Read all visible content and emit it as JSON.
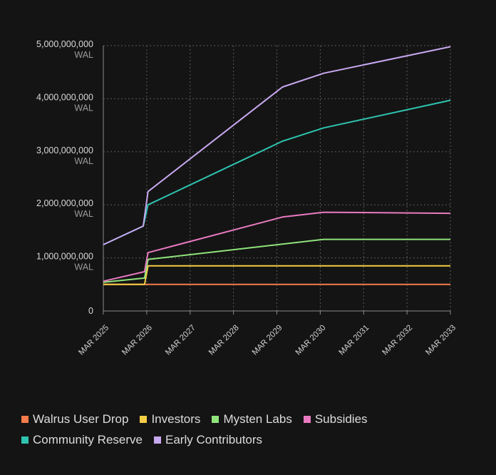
{
  "chart_data": {
    "type": "line",
    "x": [
      "MAR 2025",
      "MAR 2026",
      "MAR 2027",
      "MAR 2028",
      "MAR 2029",
      "MAR 2030",
      "MAR 2031",
      "MAR 2032",
      "MAR 2033"
    ],
    "xlim": [
      2025,
      2033
    ],
    "ylim": [
      0,
      5000000000
    ],
    "yticks": [
      {
        "value": 0,
        "label": "0",
        "unit": ""
      },
      {
        "value": 1000000000,
        "label": "1,000,000,000",
        "unit": "WAL"
      },
      {
        "value": 2000000000,
        "label": "2,000,000,000",
        "unit": "WAL"
      },
      {
        "value": 3000000000,
        "label": "3,000,000,000",
        "unit": "WAL"
      },
      {
        "value": 4000000000,
        "label": "4,000,000,000",
        "unit": "WAL"
      },
      {
        "value": 5000000000,
        "label": "5,000,000,000",
        "unit": "WAL"
      }
    ],
    "grid": true,
    "stacked": true,
    "legend_position": "bottom",
    "series": [
      {
        "name": "Walrus User Drop",
        "color": "#f47c4a",
        "points": [
          [
            2025.0,
            500000000
          ],
          [
            2033.0,
            500000000
          ]
        ]
      },
      {
        "name": "Investors",
        "color": "#f6cd45",
        "points": [
          [
            2025.0,
            500000000
          ],
          [
            2025.95,
            500000000
          ],
          [
            2026.03,
            850000000
          ],
          [
            2033.0,
            850000000
          ]
        ]
      },
      {
        "name": "Mysten Labs",
        "color": "#8fe37b",
        "points": [
          [
            2025.0,
            540000000
          ],
          [
            2025.95,
            620000000
          ],
          [
            2026.03,
            970000000
          ],
          [
            2030.08,
            1350000000
          ],
          [
            2033.0,
            1350000000
          ]
        ]
      },
      {
        "name": "Subsidies",
        "color": "#e97ac1",
        "points": [
          [
            2025.0,
            560000000
          ],
          [
            2025.95,
            740000000
          ],
          [
            2026.03,
            1100000000
          ],
          [
            2029.13,
            1770000000
          ],
          [
            2030.08,
            1860000000
          ],
          [
            2033.0,
            1840000000
          ]
        ]
      },
      {
        "name": "Community Reserve",
        "color": "#2ec4b0",
        "points": [
          [
            2025.0,
            1250000000
          ],
          [
            2025.92,
            1600000000
          ],
          [
            2026.03,
            2000000000
          ],
          [
            2029.13,
            3200000000
          ],
          [
            2030.08,
            3450000000
          ],
          [
            2033.0,
            3970000000
          ]
        ]
      },
      {
        "name": "Early Contributors",
        "color": "#c8a8f0",
        "points": [
          [
            2025.0,
            1250000000
          ],
          [
            2025.92,
            1600000000
          ],
          [
            2026.03,
            2250000000
          ],
          [
            2029.13,
            4220000000
          ],
          [
            2030.08,
            4480000000
          ],
          [
            2033.0,
            4980000000
          ]
        ]
      }
    ]
  }
}
